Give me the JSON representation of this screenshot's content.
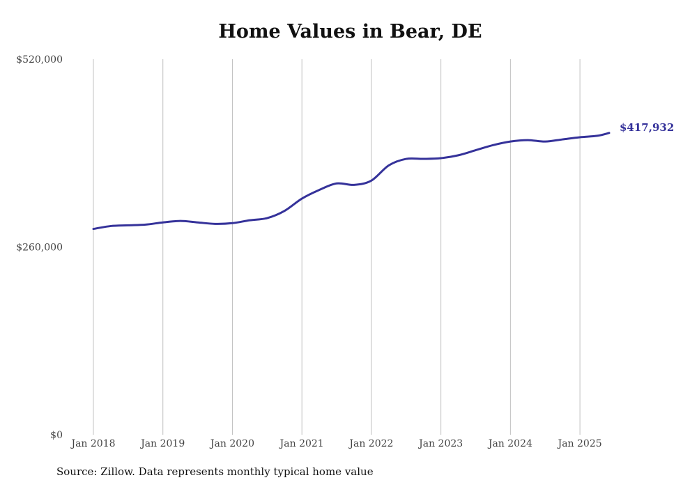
{
  "chart_data": {
    "type": "line",
    "title": "Home Values in Bear, DE",
    "source": "Source: Zillow. Data represents monthly typical home value",
    "ylim": [
      0,
      520000
    ],
    "y_ticks": [
      {
        "value": 0,
        "label": "$0"
      },
      {
        "value": 260000,
        "label": "$260,000"
      },
      {
        "value": 520000,
        "label": "$520,000"
      }
    ],
    "x_ticks": [
      {
        "value": 2018.0,
        "label": "Jan 2018"
      },
      {
        "value": 2019.0,
        "label": "Jan 2019"
      },
      {
        "value": 2020.0,
        "label": "Jan 2020"
      },
      {
        "value": 2021.0,
        "label": "Jan 2021"
      },
      {
        "value": 2022.0,
        "label": "Jan 2022"
      },
      {
        "value": 2023.0,
        "label": "Jan 2023"
      },
      {
        "value": 2024.0,
        "label": "Jan 2024"
      },
      {
        "value": 2025.0,
        "label": "Jan 2025"
      }
    ],
    "xlim": [
      2018.0,
      2025.42
    ],
    "grid": "vertical",
    "line_color": "#35329a",
    "end_label": "$417,932",
    "series": [
      {
        "x": [
          2018.0,
          2018.25,
          2018.5,
          2018.75,
          2019.0,
          2019.25,
          2019.5,
          2019.75,
          2020.0,
          2020.25,
          2020.5,
          2020.75,
          2021.0,
          2021.25,
          2021.5,
          2021.75,
          2022.0,
          2022.25,
          2022.5,
          2022.75,
          2023.0,
          2023.25,
          2023.5,
          2023.75,
          2024.0,
          2024.25,
          2024.5,
          2024.75,
          2025.0,
          2025.25,
          2025.42
        ],
        "y": [
          285000,
          289000,
          290000,
          291000,
          294000,
          296000,
          294000,
          292000,
          293000,
          297000,
          300000,
          310000,
          327000,
          339000,
          348000,
          346000,
          352000,
          373000,
          382000,
          382000,
          383000,
          387000,
          394000,
          401000,
          406000,
          408000,
          406000,
          409000,
          412000,
          414000,
          417932
        ]
      }
    ]
  }
}
